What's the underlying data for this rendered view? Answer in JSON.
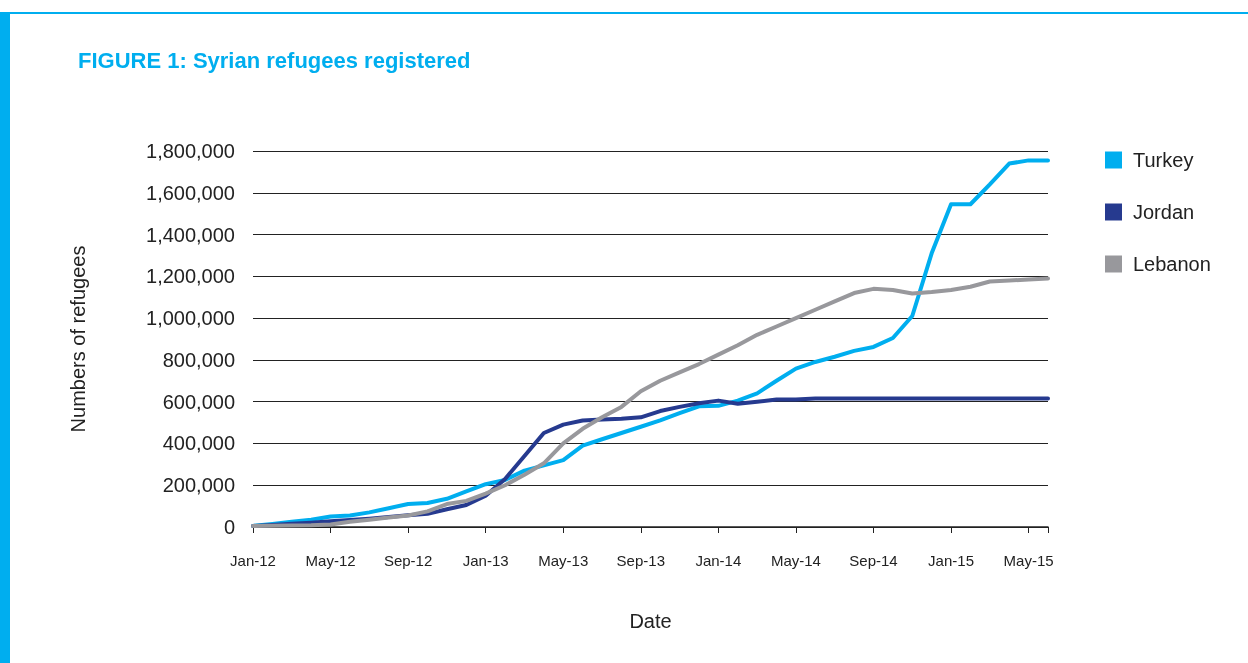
{
  "chart_data": {
    "type": "line",
    "title": "FIGURE 1: Syrian refugees registered",
    "xlabel": "Date",
    "ylabel": "Numbers of refugees",
    "categories": [
      "Jan-12",
      null,
      null,
      null,
      "May-12",
      null,
      null,
      null,
      "Sep-12",
      null,
      null,
      null,
      "Jan-13",
      null,
      null,
      null,
      "May-13",
      null,
      null,
      null,
      "Sep-13",
      null,
      null,
      null,
      "Jan-14",
      null,
      null,
      null,
      "May-14",
      null,
      null,
      null,
      "Sep-14",
      null,
      null,
      null,
      "Jan-15",
      null,
      null,
      null,
      "May-15",
      null
    ],
    "series": [
      {
        "name": "Turkey",
        "color": "#00aeef",
        "values": [
          5000,
          15000,
          25000,
          35000,
          50000,
          55000,
          70000,
          90000,
          110000,
          115000,
          135000,
          170000,
          205000,
          225000,
          270000,
          295000,
          320000,
          390000,
          420000,
          450000,
          480000,
          510000,
          545000,
          578000,
          580000,
          605000,
          640000,
          700000,
          758000,
          790000,
          815000,
          843000,
          862000,
          905000,
          1010000,
          1310000,
          1545000,
          1545000,
          1640000,
          1740000,
          1755000,
          1755000
        ]
      },
      {
        "name": "Jordan",
        "color": "#263a8f",
        "values": [
          5000,
          10000,
          15000,
          20000,
          27000,
          33000,
          40000,
          48000,
          56000,
          63000,
          85000,
          105000,
          150000,
          230000,
          340000,
          450000,
          490000,
          510000,
          515000,
          518000,
          525000,
          555000,
          575000,
          592000,
          605000,
          590000,
          600000,
          610000,
          610000,
          615000,
          615000,
          615000,
          615000,
          615000,
          615000,
          615000,
          615000,
          615000,
          615000,
          615000,
          615000,
          615000
        ]
      },
      {
        "name": "Lebanon",
        "color": "#98989c",
        "values": [
          5000,
          6000,
          7000,
          8000,
          12000,
          25000,
          35000,
          45000,
          55000,
          75000,
          110000,
          125000,
          160000,
          200000,
          250000,
          305000,
          400000,
          470000,
          525000,
          575000,
          650000,
          700000,
          740000,
          780000,
          825000,
          870000,
          920000,
          960000,
          1000000,
          1040000,
          1080000,
          1120000,
          1140000,
          1135000,
          1118000,
          1125000,
          1135000,
          1150000,
          1175000,
          1180000,
          1185000,
          1190000
        ]
      }
    ],
    "ylim": [
      0,
      1800000
    ],
    "yticks": [
      {
        "value": 0,
        "label": "0"
      },
      {
        "value": 200000,
        "label": "200,000"
      },
      {
        "value": 400000,
        "label": "400,000"
      },
      {
        "value": 600000,
        "label": "600,000"
      },
      {
        "value": 800000,
        "label": "800,000"
      },
      {
        "value": 1000000,
        "label": "1,000,000"
      },
      {
        "value": 1200000,
        "label": "1,200,000"
      },
      {
        "value": 1400000,
        "label": "1,400,000"
      },
      {
        "value": 1600000,
        "label": "1,600,000"
      },
      {
        "value": 1800000,
        "label": "1,800,000"
      }
    ],
    "grid": "y",
    "legend": "right",
    "marker": "none",
    "line_style": "solid"
  }
}
